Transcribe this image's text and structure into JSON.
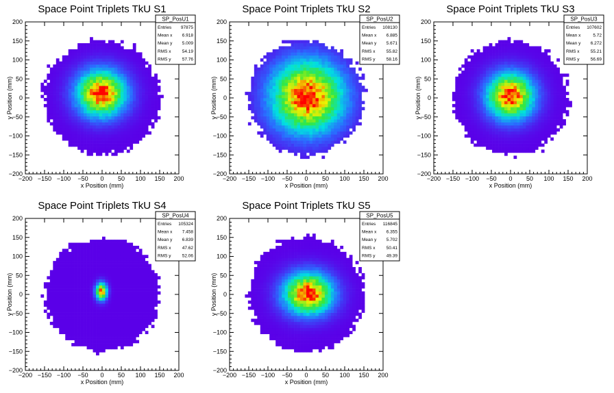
{
  "palette": {
    "low": "#5a00e8",
    "mid1": "#2a6cff",
    "mid2": "#00e0e0",
    "mid3": "#38e83a",
    "mid4": "#f0f000",
    "high": "#ff0000",
    "frame": "#000000",
    "background": "#ffffff"
  },
  "chart_data": [
    {
      "type": "heatmap",
      "title": "Space Point Triplets TkU S1",
      "xlabel": "x Position (mm)",
      "ylabel": "y Position (mm)",
      "xlim": [
        -200,
        200
      ],
      "ylim": [
        -200,
        200
      ],
      "xticks": [
        "−200",
        "−150",
        "−100",
        "−50",
        "0",
        "50",
        "100",
        "150",
        "200"
      ],
      "yticks": [
        "200",
        "150",
        "100",
        "50",
        "0",
        "−50",
        "−100",
        "−150",
        "−200"
      ],
      "stats": {
        "name": "SP_PosU1",
        "rows": [
          [
            "Entries",
            "97875"
          ],
          [
            "Mean x",
            "6.918"
          ],
          [
            "Mean y",
            "5.009"
          ],
          [
            "RMS x",
            "54.19"
          ],
          [
            "RMS y",
            "57.76"
          ]
        ]
      },
      "peak": {
        "x": -2,
        "y": 12
      },
      "spread": {
        "x": 40,
        "y": 38
      }
    },
    {
      "type": "heatmap",
      "title": "Space Point Triplets TkU S2",
      "xlabel": "x Position (mm)",
      "ylabel": "y Position (mm)",
      "xlim": [
        -200,
        200
      ],
      "ylim": [
        -200,
        200
      ],
      "xticks": [
        "−200",
        "−150",
        "−100",
        "−50",
        "0",
        "50",
        "100",
        "150",
        "200"
      ],
      "yticks": [
        "200",
        "150",
        "100",
        "50",
        "0",
        "−50",
        "−100",
        "−150",
        "−200"
      ],
      "stats": {
        "name": "SP_PosU2",
        "rows": [
          [
            "Entries",
            "108130"
          ],
          [
            "Mean x",
            "6.885"
          ],
          [
            "Mean y",
            "5.671"
          ],
          [
            "RMS x",
            "55.82"
          ],
          [
            "RMS y",
            "58.16"
          ]
        ]
      },
      "peak": {
        "x": 3,
        "y": 3
      },
      "spread": {
        "x": 60,
        "y": 60
      }
    },
    {
      "type": "heatmap",
      "title": "Space Point Triplets TkU S3",
      "xlabel": "x Position (mm)",
      "ylabel": "y Position (mm)",
      "xlim": [
        -200,
        200
      ],
      "ylim": [
        -200,
        200
      ],
      "xticks": [
        "−200",
        "−150",
        "−100",
        "−50",
        "0",
        "50",
        "100",
        "150",
        "200"
      ],
      "yticks": [
        "200",
        "150",
        "100",
        "50",
        "0",
        "−50",
        "−100",
        "−150",
        "−200"
      ],
      "stats": {
        "name": "SP_PosU3",
        "rows": [
          [
            "Entries",
            "107602"
          ],
          [
            "Mean x",
            "5.72"
          ],
          [
            "Mean y",
            "6.272"
          ],
          [
            "RMS x",
            "55.21"
          ],
          [
            "RMS y",
            "56.69"
          ]
        ]
      },
      "peak": {
        "x": 0,
        "y": 5
      },
      "spread": {
        "x": 38,
        "y": 38
      }
    },
    {
      "type": "heatmap",
      "title": "Space Point Triplets TkU S4",
      "xlabel": "x Position (mm)",
      "ylabel": "y Position (mm)",
      "xlim": [
        -200,
        200
      ],
      "ylim": [
        -200,
        200
      ],
      "xticks": [
        "−200",
        "−150",
        "−100",
        "−50",
        "0",
        "50",
        "100",
        "150",
        "200"
      ],
      "yticks": [
        "200",
        "150",
        "100",
        "50",
        "0",
        "−50",
        "−100",
        "−150",
        "−200"
      ],
      "stats": {
        "name": "SP_PosU4",
        "rows": [
          [
            "Entries",
            "105324"
          ],
          [
            "Mean x",
            "7.458"
          ],
          [
            "Mean y",
            "6.839"
          ],
          [
            "RMS x",
            "47.62"
          ],
          [
            "RMS y",
            "52.06"
          ]
        ]
      },
      "peak": {
        "x": -2,
        "y": 8
      },
      "spread": {
        "x": 9,
        "y": 14
      }
    },
    {
      "type": "heatmap",
      "title": "Space Point Triplets TkU S5",
      "xlabel": "x Position (mm)",
      "ylabel": "y Position (mm)",
      "xlim": [
        -200,
        200
      ],
      "ylim": [
        -200,
        200
      ],
      "xticks": [
        "−200",
        "−150",
        "−100",
        "−50",
        "0",
        "50",
        "100",
        "150",
        "200"
      ],
      "yticks": [
        "200",
        "150",
        "100",
        "50",
        "0",
        "−50",
        "−100",
        "−150",
        "−200"
      ],
      "stats": {
        "name": "SP_PosU5",
        "rows": [
          [
            "Entries",
            "116845"
          ],
          [
            "Mean x",
            "6.355"
          ],
          [
            "Mean y",
            "5.702"
          ],
          [
            "RMS x",
            "50.41"
          ],
          [
            "RMS y",
            "49.39"
          ]
        ]
      },
      "peak": {
        "x": 5,
        "y": 2
      },
      "spread": {
        "x": 40,
        "y": 34
      }
    }
  ]
}
